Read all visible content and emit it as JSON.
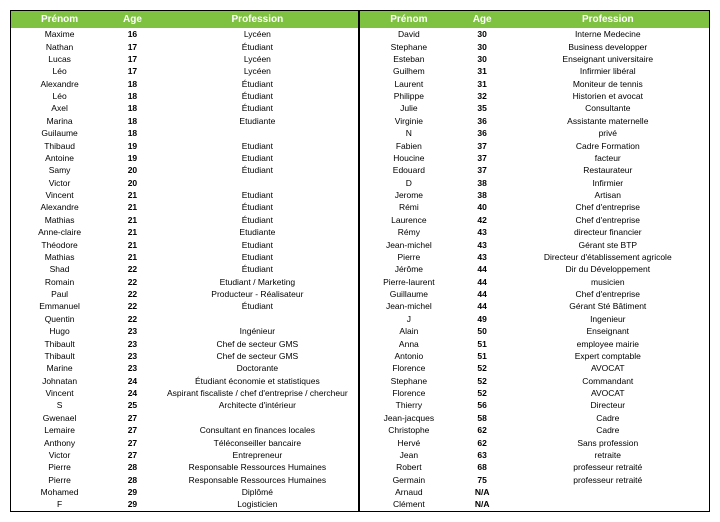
{
  "header_bg": "#7fc241",
  "columns": [
    "Prénom",
    "Age",
    "Profession"
  ],
  "left": [
    [
      "Maxime",
      "16",
      "Lycéen"
    ],
    [
      "Nathan",
      "17",
      "Étudiant"
    ],
    [
      "Lucas",
      "17",
      "Lycéen"
    ],
    [
      "Léo",
      "17",
      "Lycéen"
    ],
    [
      "Alexandre",
      "18",
      "Étudiant"
    ],
    [
      "Léo",
      "18",
      "Étudiant"
    ],
    [
      "Axel",
      "18",
      "Étudiant"
    ],
    [
      "Marina",
      "18",
      "Etudiante"
    ],
    [
      "Guilaume",
      "18",
      ""
    ],
    [
      "Thibaud",
      "19",
      "Etudiant"
    ],
    [
      "Antoine",
      "19",
      "Etudiant"
    ],
    [
      "Samy",
      "20",
      "Étudiant"
    ],
    [
      "Victor",
      "20",
      ""
    ],
    [
      "Vincent",
      "21",
      "Etudiant"
    ],
    [
      "Alexandre",
      "21",
      "Étudiant"
    ],
    [
      "Mathias",
      "21",
      "Étudiant"
    ],
    [
      "Anne-claire",
      "21",
      "Etudiante"
    ],
    [
      "Théodore",
      "21",
      "Etudiant"
    ],
    [
      "Mathias",
      "21",
      "Etudiant"
    ],
    [
      "Shad",
      "22",
      "Étudiant"
    ],
    [
      "Romain",
      "22",
      "Etudiant / Marketing"
    ],
    [
      "Paul",
      "22",
      "Producteur - Réalisateur"
    ],
    [
      "Emmanuel",
      "22",
      "Étudiant"
    ],
    [
      "Quentin",
      "22",
      ""
    ],
    [
      "Hugo",
      "23",
      "Ingénieur"
    ],
    [
      "Thibault",
      "23",
      "Chef de secteur GMS"
    ],
    [
      "Thibault",
      "23",
      "Chef de secteur GMS"
    ],
    [
      "Marine",
      "23",
      "Doctorante"
    ],
    [
      "Johnatan",
      "24",
      "Étudiant économie et statistiques"
    ],
    [
      "Vincent",
      "24",
      "Aspirant fiscaliste / chef d'entreprise / chercheur"
    ],
    [
      "S",
      "25",
      "Architecte d'intérieur"
    ],
    [
      "Gwenael",
      "27",
      ""
    ],
    [
      "Lemaire",
      "27",
      "Consultant en finances locales"
    ],
    [
      "Anthony",
      "27",
      "Téléconseiller bancaire"
    ],
    [
      "Victor",
      "27",
      "Entrepreneur"
    ],
    [
      "Pierre",
      "28",
      "Responsable Ressources Humaines"
    ],
    [
      "Pierre",
      "28",
      "Responsable Ressources Humaines"
    ],
    [
      "Mohamed",
      "29",
      "Diplômé"
    ],
    [
      "F",
      "29",
      "Logisticien"
    ]
  ],
  "right": [
    [
      "David",
      "30",
      "Interne Medecine"
    ],
    [
      "Stephane",
      "30",
      "Business developper"
    ],
    [
      "Esteban",
      "30",
      "Enseignant universitaire"
    ],
    [
      "Guilhem",
      "31",
      "Infirmier libéral"
    ],
    [
      "Laurent",
      "31",
      "Moniteur de tennis"
    ],
    [
      "Philippe",
      "32",
      "Historien et avocat"
    ],
    [
      "Julie",
      "35",
      "Consultante"
    ],
    [
      "Virginie",
      "36",
      "Assistante maternelle"
    ],
    [
      "N",
      "36",
      "privé"
    ],
    [
      "Fabien",
      "37",
      "Cadre Formation"
    ],
    [
      "Houcine",
      "37",
      "facteur"
    ],
    [
      "Edouard",
      "37",
      "Restaurateur"
    ],
    [
      "D",
      "38",
      "Infirmier"
    ],
    [
      "Jerome",
      "38",
      "Artisan"
    ],
    [
      "Rémi",
      "40",
      "Chef d'entreprise"
    ],
    [
      "Laurence",
      "42",
      "Chef d'entreprise"
    ],
    [
      "Rémy",
      "43",
      "directeur financier"
    ],
    [
      "Jean-michel",
      "43",
      "Gérant ste BTP"
    ],
    [
      "Pierre",
      "43",
      "Directeur d'établissement agricole"
    ],
    [
      "Jérôme",
      "44",
      "Dir du Développement"
    ],
    [
      "Pierre-laurent",
      "44",
      "musicien"
    ],
    [
      "Guillaume",
      "44",
      "Chef d'entreprise"
    ],
    [
      "Jean-michel",
      "44",
      "Gérant Sté Bâtiment"
    ],
    [
      "J",
      "49",
      "Ingenieur"
    ],
    [
      "Alain",
      "50",
      "Enseignant"
    ],
    [
      "Anna",
      "51",
      "employee mairie"
    ],
    [
      "Antonio",
      "51",
      "Expert comptable"
    ],
    [
      "Florence",
      "52",
      "AVOCAT"
    ],
    [
      "Stephane",
      "52",
      "Commandant"
    ],
    [
      "Florence",
      "52",
      "AVOCAT"
    ],
    [
      "Thierry",
      "56",
      "Directeur"
    ],
    [
      "Jean-jacques",
      "58",
      "Cadre"
    ],
    [
      "Christophe",
      "62",
      "Cadre"
    ],
    [
      "Hervé",
      "62",
      "Sans profession"
    ],
    [
      "Jean",
      "63",
      "retraite"
    ],
    [
      "Robert",
      "68",
      "professeur retraité"
    ],
    [
      "Germain",
      "75",
      "professeur retraité"
    ],
    [
      "Arnaud",
      "N/A",
      ""
    ],
    [
      "Clément",
      "N/A",
      ""
    ]
  ]
}
